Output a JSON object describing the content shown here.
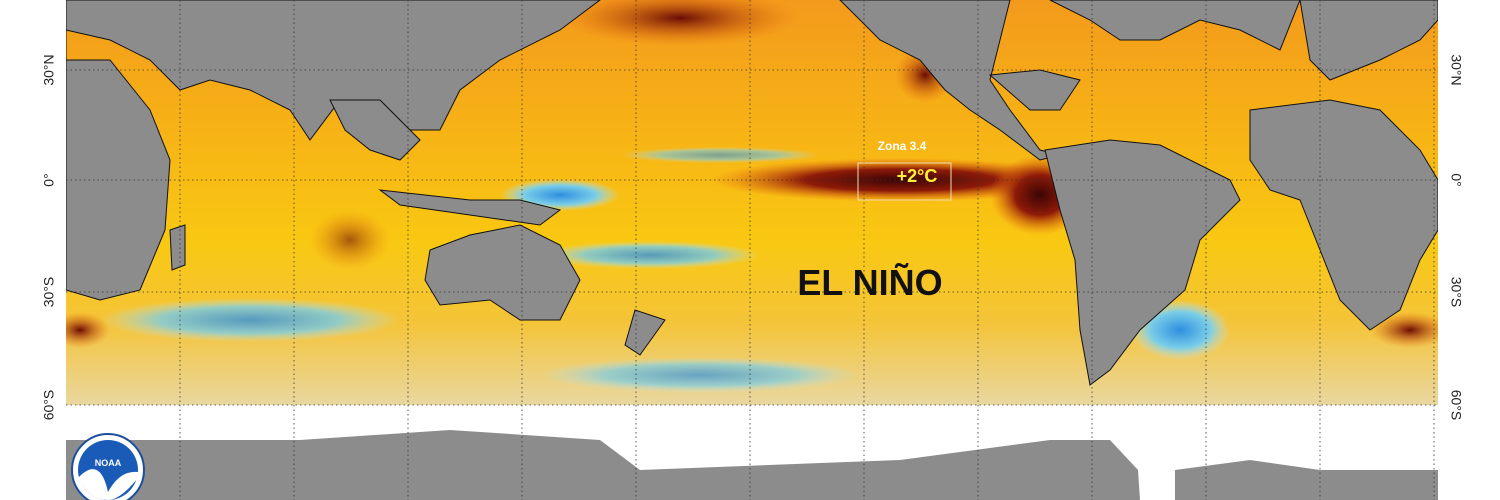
{
  "map": {
    "lat_labels": [
      "30°N",
      "0°",
      "30°S",
      "60°S"
    ],
    "zone": {
      "name": "Zona 3.4",
      "anomaly": "+2°C"
    },
    "headline": "EL NIÑO",
    "logo": "NOAA"
  }
}
